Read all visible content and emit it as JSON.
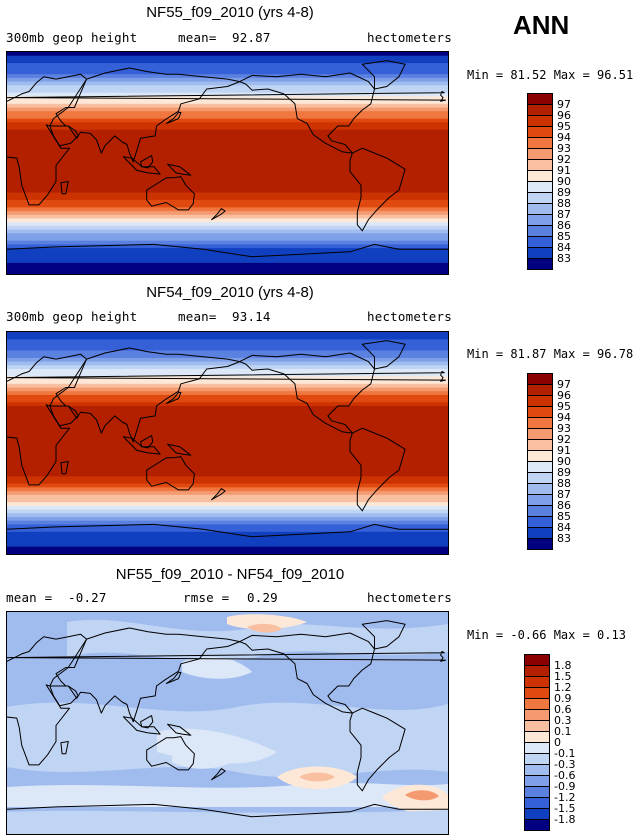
{
  "season": "ANN",
  "chart_data": [
    {
      "type": "heatmap",
      "title": "NF55_f09_2010 (yrs 4-8)",
      "field": "300mb geop height",
      "mean_label": "mean=",
      "mean": "92.87",
      "units": "hectometers",
      "minmax": "Min =  81.52 Max =  96.51",
      "colorbar_levels": [
        "97",
        "96",
        "95",
        "94",
        "93",
        "92",
        "91",
        "90",
        "89",
        "88",
        "87",
        "86",
        "85",
        "84",
        "83"
      ],
      "colorbar_colors": [
        "#8b0000",
        "#b22000",
        "#cc3300",
        "#e04a10",
        "#f07840",
        "#f59a70",
        "#f8c0a0",
        "#fde8d8",
        "#dce8f8",
        "#c0d4f4",
        "#a0bcef",
        "#7fa0e8",
        "#5a80e0",
        "#3560d8",
        "#1040c0",
        "#000080"
      ],
      "zonal_profile": [
        {
          "lat": 90,
          "value": 82.5
        },
        {
          "lat": 70,
          "value": 85.5
        },
        {
          "lat": 60,
          "value": 88.5
        },
        {
          "lat": 50,
          "value": 90.5
        },
        {
          "lat": 40,
          "value": 93.5
        },
        {
          "lat": 30,
          "value": 95.5
        },
        {
          "lat": 20,
          "value": 96.5
        },
        {
          "lat": 0,
          "value": 96.7
        },
        {
          "lat": -20,
          "value": 96.5
        },
        {
          "lat": -30,
          "value": 95.0
        },
        {
          "lat": -40,
          "value": 93.0
        },
        {
          "lat": -50,
          "value": 89.5
        },
        {
          "lat": -60,
          "value": 86.5
        },
        {
          "lat": -70,
          "value": 84.0
        },
        {
          "lat": -90,
          "value": 82.0
        }
      ]
    },
    {
      "type": "heatmap",
      "title": "NF54_f09_2010 (yrs 4-8)",
      "field": "300mb geop height",
      "mean_label": "mean=",
      "mean": "93.14",
      "units": "hectometers",
      "minmax": "Min =  81.87 Max =  96.78",
      "colorbar_levels": [
        "97",
        "96",
        "95",
        "94",
        "93",
        "92",
        "91",
        "90",
        "89",
        "88",
        "87",
        "86",
        "85",
        "84",
        "83"
      ],
      "colorbar_colors": [
        "#8b0000",
        "#b22000",
        "#cc3300",
        "#e04a10",
        "#f07840",
        "#f59a70",
        "#f8c0a0",
        "#fde8d8",
        "#dce8f8",
        "#c0d4f4",
        "#a0bcef",
        "#7fa0e8",
        "#5a80e0",
        "#3560d8",
        "#1040c0",
        "#000080"
      ],
      "zonal_profile": [
        {
          "lat": 90,
          "value": 82.8
        },
        {
          "lat": 70,
          "value": 85.8
        },
        {
          "lat": 60,
          "value": 88.8
        },
        {
          "lat": 50,
          "value": 90.8
        },
        {
          "lat": 40,
          "value": 93.8
        },
        {
          "lat": 30,
          "value": 95.8
        },
        {
          "lat": 20,
          "value": 96.7
        },
        {
          "lat": 0,
          "value": 96.8
        },
        {
          "lat": -20,
          "value": 96.7
        },
        {
          "lat": -30,
          "value": 95.3
        },
        {
          "lat": -40,
          "value": 93.3
        },
        {
          "lat": -50,
          "value": 89.8
        },
        {
          "lat": -60,
          "value": 86.8
        },
        {
          "lat": -70,
          "value": 84.3
        },
        {
          "lat": -90,
          "value": 82.3
        }
      ]
    },
    {
      "type": "heatmap",
      "title": "NF55_f09_2010 - NF54_f09_2010",
      "mean_label": "mean =",
      "mean": "-0.27",
      "rmse_label": "rmse =",
      "rmse": "0.29",
      "units": "hectometers",
      "minmax": "Min = -0.66 Max =  0.13",
      "colorbar_levels": [
        "1.8",
        "1.5",
        "1.2",
        "0.9",
        "0.6",
        "0.3",
        "0.1",
        "0",
        "-0.1",
        "-0.3",
        "-0.6",
        "-0.9",
        "-1.2",
        "-1.5",
        "-1.8"
      ],
      "colorbar_colors": [
        "#8b0000",
        "#b22000",
        "#cc3300",
        "#e04a10",
        "#f07840",
        "#f59a70",
        "#f8c0a0",
        "#fde8d8",
        "#dce8f8",
        "#c0d4f4",
        "#a0bcef",
        "#7fa0e8",
        "#5a80e0",
        "#3560d8",
        "#1040c0",
        "#000080"
      ]
    }
  ]
}
